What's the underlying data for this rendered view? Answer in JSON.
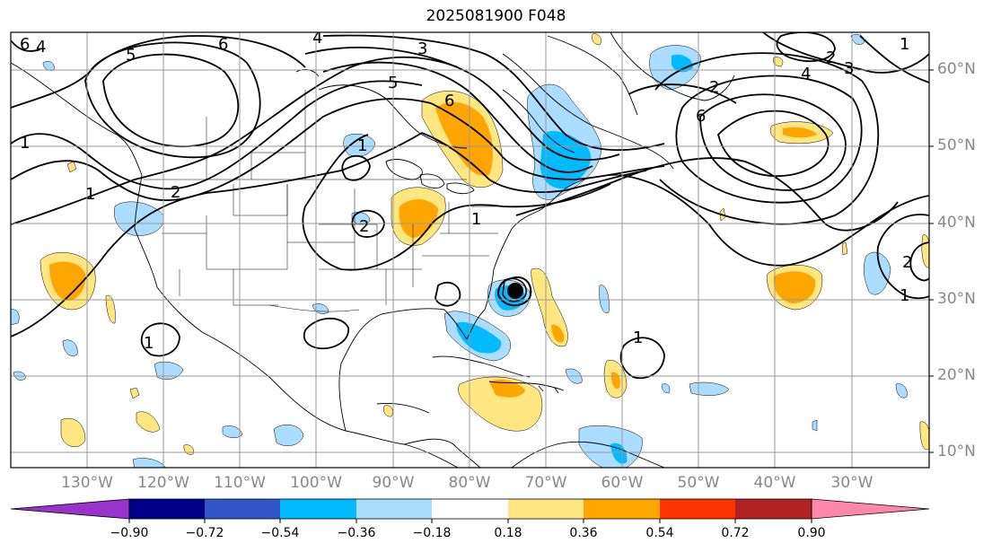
{
  "title": "2025081900 F048",
  "lat_labels": [
    "60°N",
    "50°N",
    "40°N",
    "30°N",
    "20°N",
    "10°N"
  ],
  "lon_labels": [
    "130°W",
    "120°W",
    "110°W",
    "100°W",
    "90°W",
    "80°W",
    "70°W",
    "60°W",
    "50°W",
    "40°W",
    "30°W"
  ],
  "contour_labels": [
    "6",
    "4",
    "5",
    "6",
    "4",
    "3",
    "5",
    "2",
    "2",
    "1",
    "1",
    "2",
    "1",
    "6",
    "6",
    "4",
    "3",
    "2",
    "1",
    "2",
    "1",
    "1",
    "1",
    "1"
  ],
  "colorbar": {
    "ticks": [
      "−0.90",
      "−0.72",
      "−0.54",
      "−0.36",
      "−0.18",
      "0.18",
      "0.36",
      "0.54",
      "0.72",
      "0.90"
    ],
    "colors": {
      "under": "#9933cc",
      "bins": [
        "#000088",
        "#3355cc",
        "#00bbff",
        "#aaddff",
        "#ffffff",
        "#ffe680",
        "#ffa500",
        "#ff3300",
        "#b22222"
      ],
      "over": "#ff88aa"
    }
  },
  "colors": {
    "light_yellow": "#ffe680",
    "orange": "#ffa500",
    "light_blue": "#aaddff",
    "deep_sky_blue": "#00bbff",
    "grid": "#999999",
    "coast": "#000000"
  }
}
